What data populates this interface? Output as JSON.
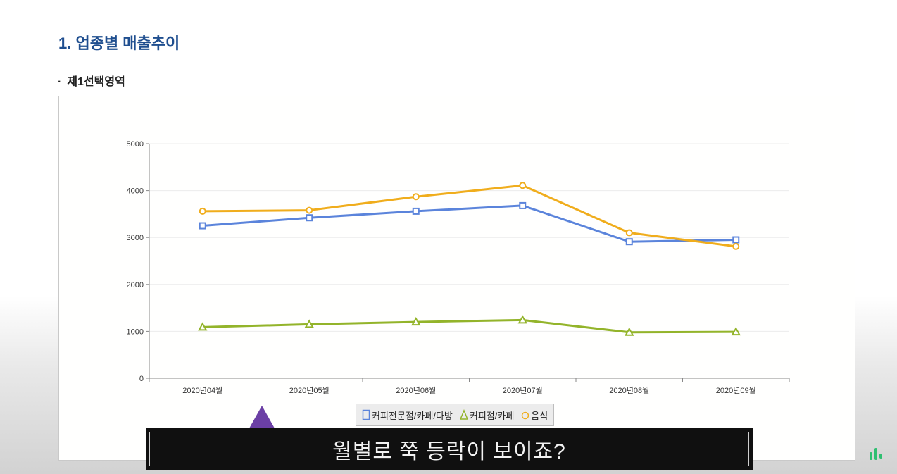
{
  "page": {
    "section_title": "1. 업종별 매출추이",
    "sub_title": "제1선택영역",
    "bullet": "·"
  },
  "caption": "월별로 쭉 등락이 보이죠?",
  "colors": {
    "title": "#1f4e8f",
    "series_1": "#5b84db",
    "series_2": "#93b42a",
    "series_3": "#f0ad1c",
    "caption_box": "#101010",
    "pointer": "#6b3fa5",
    "brand": "#2fbf71"
  },
  "icons": {
    "brand_logo": "bar-logo-icon",
    "pointer": "triangle-pointer-icon"
  },
  "chart_data": {
    "type": "line",
    "title": "",
    "xlabel": "",
    "ylabel": "",
    "categories": [
      "2020년04월",
      "2020년05월",
      "2020년06월",
      "2020년07월",
      "2020년08월",
      "2020년09월"
    ],
    "ylim": [
      0,
      5000
    ],
    "yticks": [
      0,
      1000,
      2000,
      3000,
      4000,
      5000
    ],
    "grid": true,
    "legend_position": "bottom",
    "series": [
      {
        "name": "커피전문점/카페/다방",
        "marker": "square",
        "color": "#5b84db",
        "values": [
          3250,
          3420,
          3560,
          3680,
          2910,
          2950
        ]
      },
      {
        "name": "커피점/카페",
        "marker": "triangle",
        "color": "#93b42a",
        "values": [
          1090,
          1150,
          1200,
          1240,
          980,
          990
        ]
      },
      {
        "name": "음식",
        "marker": "circle",
        "color": "#f0ad1c",
        "values": [
          3560,
          3580,
          3870,
          4110,
          3100,
          2810
        ]
      }
    ]
  }
}
